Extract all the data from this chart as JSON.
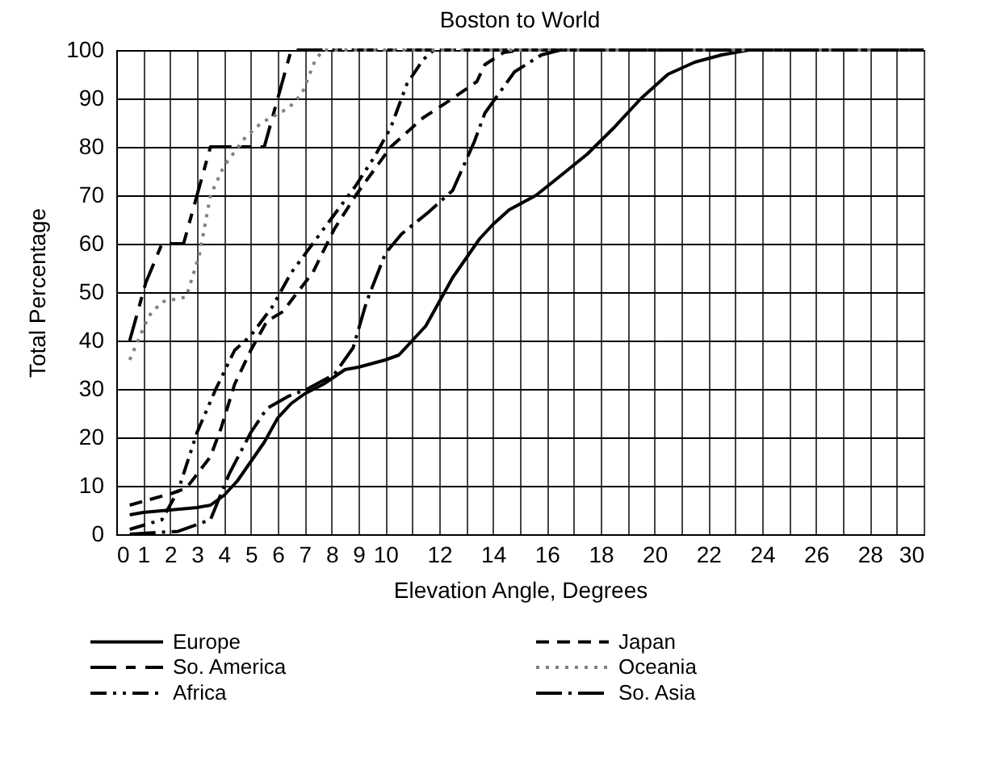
{
  "chart_data": {
    "type": "line",
    "title": "Boston to World",
    "xlabel": "Elevation Angle, Degrees",
    "ylabel": "Total Percentage",
    "xlim": [
      0,
      30
    ],
    "xticks": [
      0,
      1,
      2,
      3,
      4,
      5,
      6,
      7,
      8,
      9,
      10,
      {
        "value": 11,
        "label": null
      },
      12,
      {
        "value": 13,
        "label": null
      },
      14,
      {
        "value": 15,
        "label": null
      },
      16,
      {
        "value": 17,
        "label": null
      },
      18,
      {
        "value": 19,
        "label": null
      },
      20,
      {
        "value": 21,
        "label": null
      },
      22,
      {
        "value": 23,
        "label": null
      },
      24,
      {
        "value": 25,
        "label": null
      },
      26,
      {
        "value": 27,
        "label": null
      },
      28,
      {
        "value": 29,
        "label": null
      },
      30
    ],
    "ylim": [
      0,
      100
    ],
    "yticks": [
      0,
      10,
      20,
      30,
      40,
      50,
      60,
      70,
      80,
      90,
      100
    ],
    "grid": true,
    "legend": "bottom",
    "marker": "none",
    "series": [
      {
        "name": "Europe",
        "color": "#000000",
        "line_style": "solid",
        "x": [
          0.5,
          1,
          2,
          3,
          3.5,
          4,
          4.5,
          5,
          5.5,
          6,
          6.5,
          7,
          7.7,
          8.5,
          9,
          10,
          10.5,
          11,
          11.5,
          12,
          12.5,
          13,
          13.5,
          14,
          14.6,
          15.6,
          16.5,
          17.5,
          18.5,
          19.5,
          20.5,
          21.5,
          22.5,
          23.5,
          30
        ],
        "values": [
          4,
          4.5,
          5,
          5.5,
          6,
          8,
          11,
          15,
          19,
          24,
          27,
          29,
          31,
          34,
          34.5,
          36,
          37,
          40,
          43,
          48,
          53,
          57,
          61,
          64,
          67,
          70,
          74,
          78.5,
          84,
          90,
          95,
          97.5,
          99,
          100,
          100
        ]
      },
      {
        "name": "So. America",
        "color": "#000000",
        "line_style": "longdashshortdash",
        "x": [
          0.5,
          1.1,
          1.7,
          2.5,
          3,
          3.5,
          5.5,
          6,
          6.5,
          30
        ],
        "values": [
          40,
          52,
          60,
          60,
          70,
          80,
          80,
          90,
          100,
          100
        ]
      },
      {
        "name": "Africa",
        "color": "#000000",
        "line_style": "dashdotdot",
        "x": [
          0.5,
          1.7,
          2.3,
          3,
          3.7,
          4.4,
          5,
          5.8,
          6.5,
          7.3,
          8.1,
          8.9,
          9.6,
          10.2,
          10.8,
          11.4,
          11.8,
          30
        ],
        "values": [
          1,
          3,
          9,
          21,
          30,
          38,
          41,
          47,
          54,
          60,
          66,
          72,
          78,
          84,
          93,
          98,
          100,
          100
        ]
      },
      {
        "name": "Japan",
        "color": "#000000",
        "line_style": "dashed",
        "x": [
          0.5,
          2.1,
          2.6,
          3.5,
          3.9,
          4.4,
          5,
          5.6,
          6.2,
          6.6,
          7.3,
          8.1,
          8.9,
          10.2,
          11.4,
          12.5,
          13.4,
          13.7,
          14.4,
          15,
          30
        ],
        "values": [
          6,
          8.5,
          9.5,
          16,
          22,
          31,
          38,
          44,
          46,
          49,
          54,
          63,
          70,
          80,
          86,
          90,
          93.5,
          97,
          99.5,
          100,
          100
        ]
      },
      {
        "name": "Oceania",
        "color": "#808080",
        "line_style": "dotted",
        "x": [
          0.5,
          1.2,
          1.7,
          2.6,
          3.1,
          3.5,
          4,
          4.8,
          5.4,
          6.4,
          6.9,
          7.4,
          7.7,
          30
        ],
        "values": [
          36,
          45,
          48,
          49,
          58,
          70,
          76,
          82,
          85,
          88,
          91,
          98,
          100,
          100
        ]
      },
      {
        "name": "So. Asia",
        "color": "#000000",
        "line_style": "longdashdot",
        "x": [
          0.5,
          2.3,
          3.5,
          4.2,
          5,
          5.6,
          6.4,
          7.1,
          8.1,
          8.8,
          9.3,
          10,
          10.6,
          11.6,
          12.5,
          13.3,
          13.7,
          14.8,
          15.8,
          16.5,
          30
        ],
        "values": [
          0,
          0.6,
          3,
          12.5,
          21,
          26,
          28.5,
          30,
          33,
          38.5,
          48,
          58,
          62,
          66.5,
          71,
          81,
          87,
          95.5,
          99,
          100,
          100
        ]
      }
    ]
  }
}
